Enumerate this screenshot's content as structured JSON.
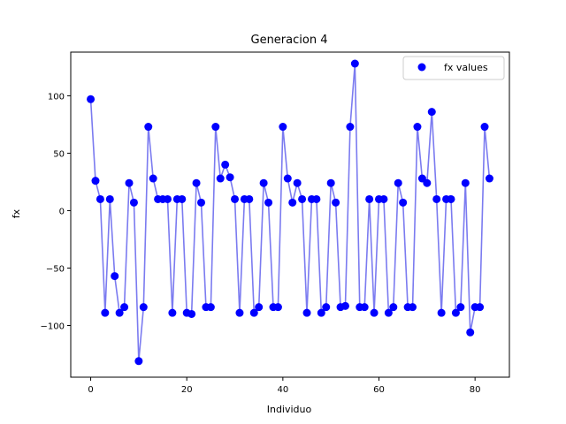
{
  "chart_data": {
    "type": "line",
    "title": "Generacion 4",
    "xlabel": "Individuo",
    "ylabel": "fx",
    "xlim": [
      -4.15,
      87.15
    ],
    "ylim": [
      -145,
      138
    ],
    "xticks": [
      0,
      20,
      40,
      60,
      80
    ],
    "yticks": [
      -100,
      -50,
      0,
      50,
      100
    ],
    "xtick_labels": [
      "0",
      "20",
      "40",
      "60",
      "80"
    ],
    "ytick_labels": [
      "−100",
      "−50",
      "0",
      "50",
      "100"
    ],
    "grid": false,
    "legend_position": "top-right",
    "series": [
      {
        "name": "fx values",
        "marker_color": "#0000ff",
        "line_color": "#7b7bf0",
        "values": [
          97,
          26,
          10,
          -89,
          10,
          -57,
          -89,
          -84,
          24,
          7,
          -131,
          -84,
          73,
          28,
          10,
          10,
          10,
          -89,
          10,
          10,
          -89,
          -90,
          24,
          7,
          -84,
          -84,
          73,
          28,
          40,
          29,
          10,
          -89,
          10,
          10,
          -89,
          -84,
          24,
          7,
          -84,
          -84,
          73,
          28,
          7,
          24,
          10,
          -89,
          10,
          10,
          -89,
          -84,
          24,
          7,
          -84,
          -83,
          73,
          128,
          -84,
          -84,
          10,
          -89,
          10,
          10,
          -89,
          -84,
          24,
          7,
          -84,
          -84,
          73,
          28,
          24,
          86,
          10,
          -89,
          10,
          10,
          -89,
          -84,
          24,
          -106,
          -84,
          -84,
          73,
          28
        ]
      }
    ]
  }
}
